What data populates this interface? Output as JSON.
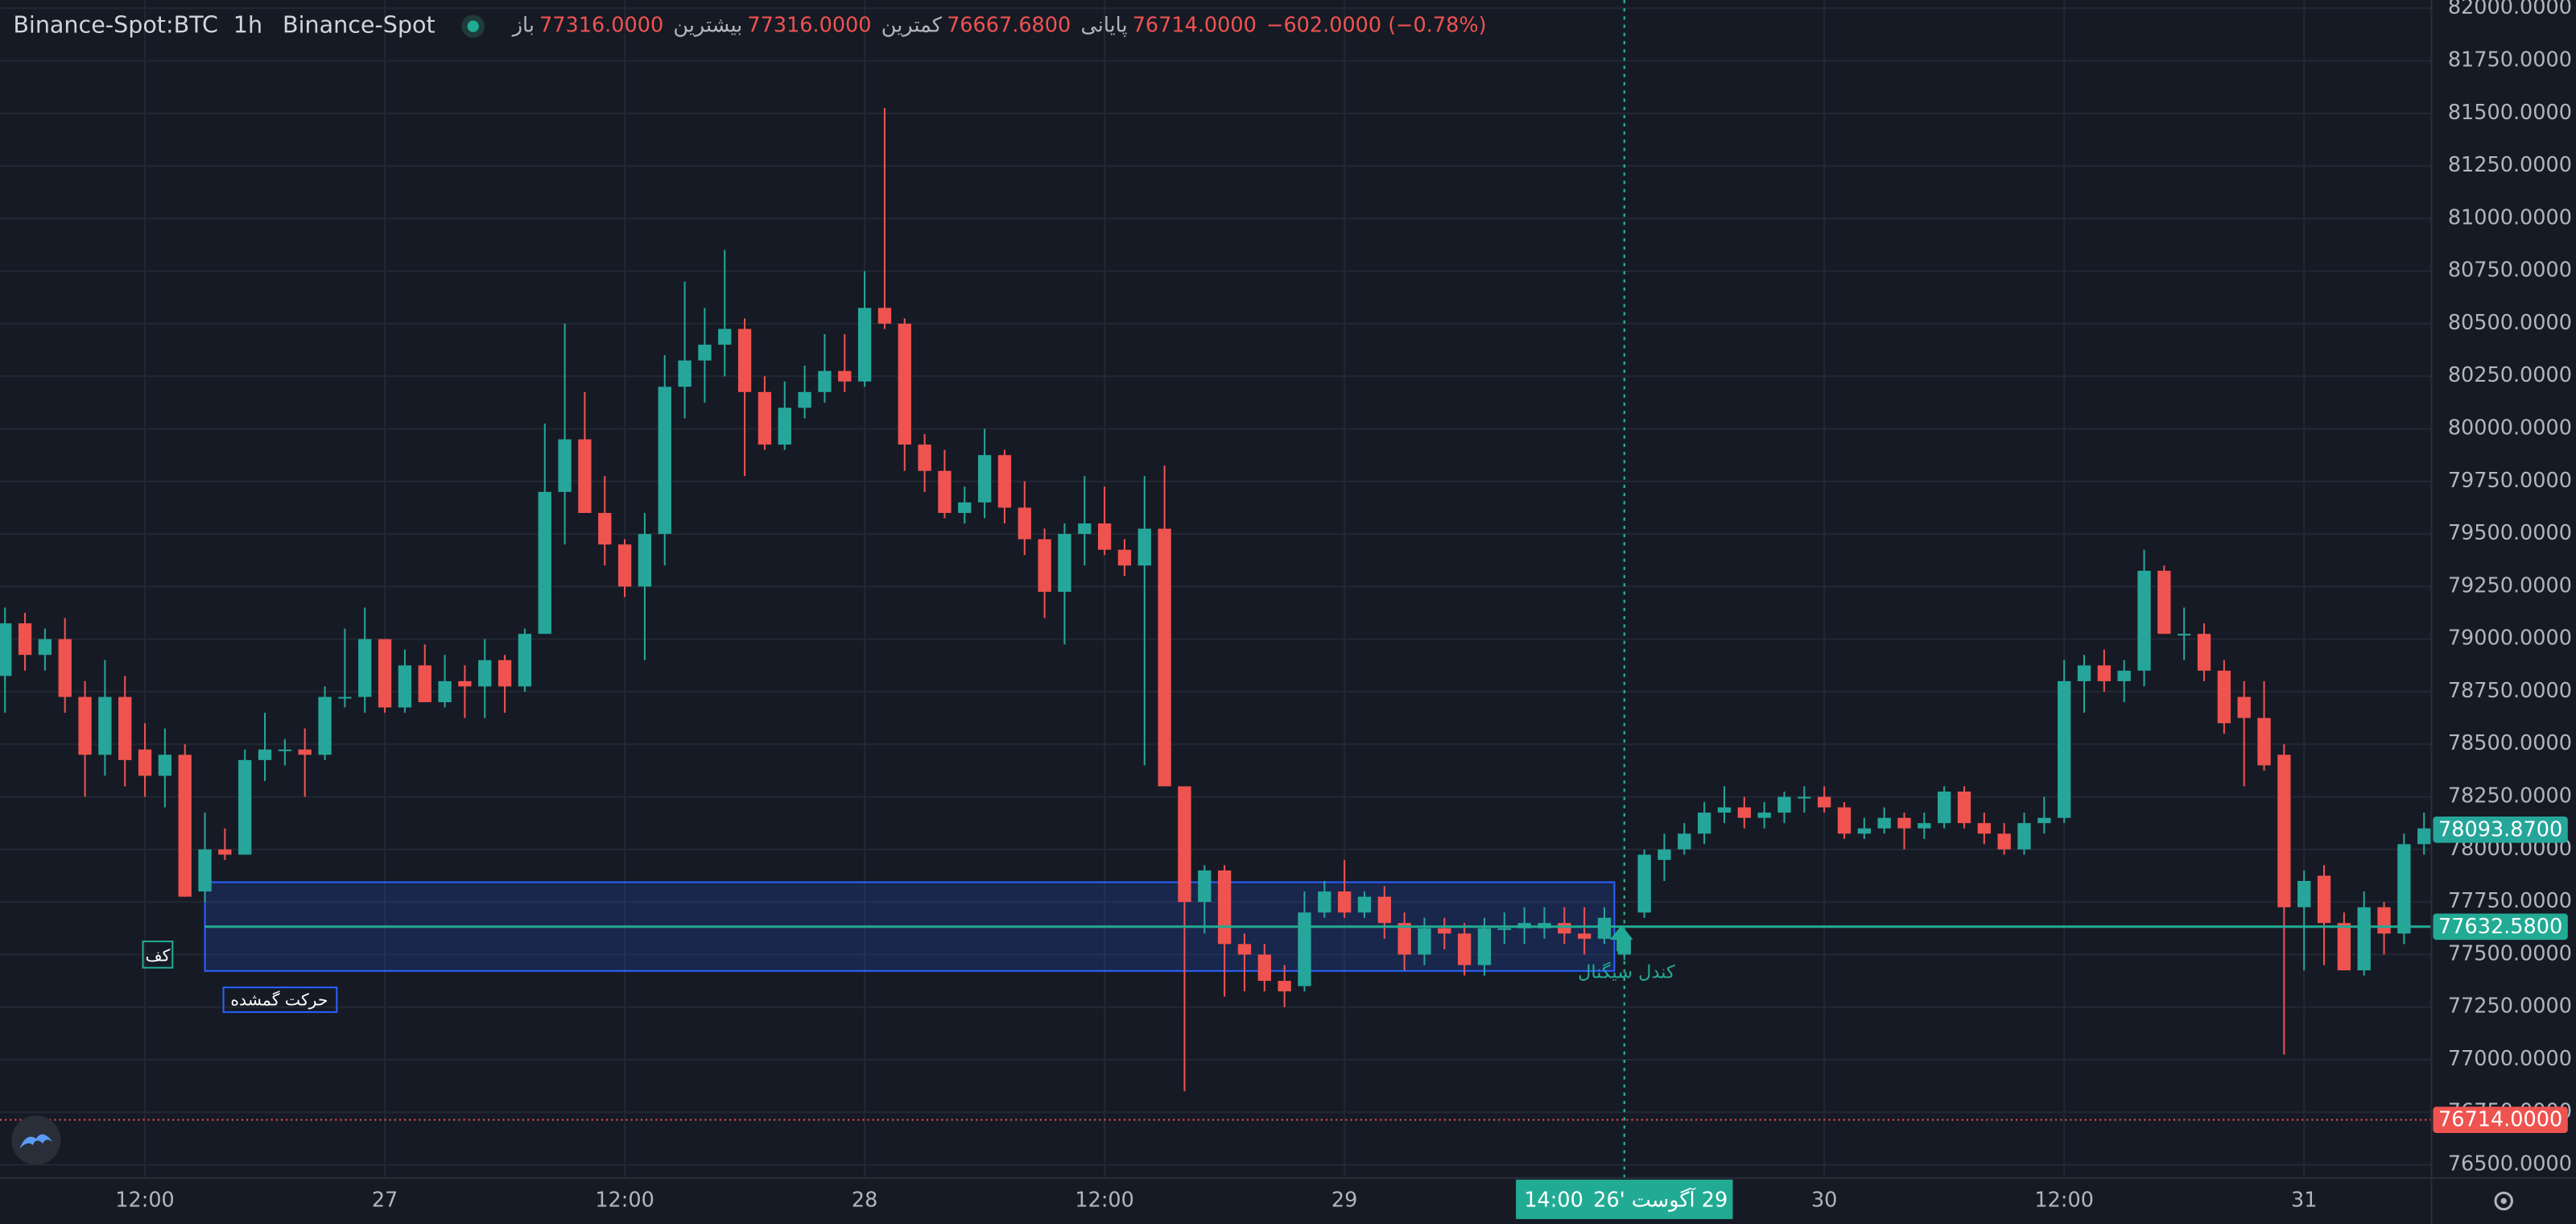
{
  "chart_data": {
    "type": "candlestick",
    "header": {
      "symbol": "Binance-Spot:BTC",
      "interval": "1h",
      "exchange": "Binance-Spot",
      "legend": [
        {
          "label": "باز",
          "value": "77316.0000"
        },
        {
          "label": "بیشترین",
          "value": "77316.0000"
        },
        {
          "label": "کمترین",
          "value": "76667.6800"
        },
        {
          "label": "پایانی",
          "value": "76714.0000"
        }
      ],
      "change": "−602.0000 (−0.78%)"
    },
    "up_color": "#26a69a",
    "down_color": "#ef5350",
    "open": [
      78825,
      79075,
      78925,
      79000,
      78725,
      78450,
      78725,
      78475,
      78350,
      78450,
      77800,
      78000,
      77975,
      78425,
      78475,
      78475,
      78450,
      78725,
      78725,
      79000,
      78675,
      78875,
      78700,
      78800,
      78775,
      78900,
      78775,
      79025,
      79700,
      79950,
      79600,
      79450,
      79250,
      79500,
      80200,
      80325,
      80400,
      80475,
      80175,
      79925,
      80100,
      80175,
      80275,
      80225,
      80575,
      80500,
      79925,
      79800,
      79600,
      79650,
      79875,
      79625,
      79475,
      79225,
      79500,
      79550,
      79425,
      79350,
      79525,
      78300,
      77750,
      77900,
      77550,
      77500,
      77375,
      77350,
      77700,
      77800,
      77700,
      77775,
      77650,
      77500,
      77625,
      77600,
      77450,
      77625,
      77625,
      77625,
      77650,
      77600,
      77575,
      77500,
      77700,
      77950,
      78000,
      78075,
      78175,
      78200,
      78150,
      78175,
      78250,
      78250,
      78200,
      78075,
      78100,
      78150,
      78100,
      78125,
      78275,
      78125,
      78075,
      78000,
      78125,
      78150,
      78800,
      78875,
      78800,
      78850,
      79325,
      79025,
      79025,
      78850,
      78725,
      78625,
      78450,
      77725,
      77875,
      77650,
      77425,
      77725,
      77600,
      78025
    ],
    "high": [
      79150,
      79125,
      79050,
      79100,
      78800,
      78900,
      78825,
      78600,
      78575,
      78500,
      78175,
      78100,
      78475,
      78650,
      78525,
      78575,
      78775,
      79050,
      79150,
      79000,
      78950,
      78975,
      78925,
      78875,
      79000,
      78925,
      79050,
      80025,
      80500,
      80175,
      79775,
      79475,
      79600,
      80350,
      80700,
      80575,
      80850,
      80525,
      80250,
      80225,
      80300,
      80450,
      80450,
      80750,
      81525,
      80525,
      79975,
      79900,
      79725,
      80000,
      79900,
      79750,
      79525,
      79550,
      79775,
      79725,
      79475,
      79775,
      79825,
      78300,
      77925,
      77925,
      77600,
      77550,
      77450,
      77800,
      77850,
      77950,
      77800,
      77825,
      77700,
      77675,
      77675,
      77650,
      77675,
      77700,
      77725,
      77725,
      77725,
      77725,
      77725,
      77575,
      78000,
      78075,
      78125,
      78225,
      78300,
      78250,
      78225,
      78275,
      78300,
      78300,
      78225,
      78150,
      78200,
      78175,
      78175,
      78300,
      78300,
      78175,
      78125,
      78175,
      78250,
      78900,
      78925,
      78950,
      78900,
      79425,
      79350,
      79150,
      79075,
      78900,
      78800,
      78800,
      78500,
      77900,
      77925,
      77700,
      77800,
      77750,
      78075,
      78175
    ],
    "low": [
      78650,
      78850,
      78850,
      78650,
      78250,
      78350,
      78300,
      78250,
      78200,
      77775,
      77750,
      77950,
      77975,
      78325,
      78400,
      78250,
      78425,
      78675,
      78650,
      78650,
      78650,
      78700,
      78675,
      78625,
      78625,
      78650,
      78750,
      79025,
      79450,
      79600,
      79350,
      79200,
      78900,
      79350,
      80050,
      80125,
      80250,
      79775,
      79900,
      79900,
      80050,
      80125,
      80175,
      80200,
      80475,
      79800,
      79700,
      79575,
      79550,
      79575,
      79550,
      79400,
      79100,
      78975,
      79350,
      79400,
      79300,
      78400,
      78300,
      76850,
      77600,
      77300,
      77325,
      77325,
      77250,
      77325,
      77675,
      77675,
      77675,
      77575,
      77425,
      77450,
      77525,
      77400,
      77400,
      77550,
      77550,
      77575,
      77550,
      77500,
      77550,
      77475,
      77675,
      77850,
      77975,
      78025,
      78125,
      78100,
      78100,
      78125,
      78175,
      78175,
      78050,
      78050,
      78075,
      78000,
      78050,
      78100,
      78100,
      78025,
      77975,
      77975,
      78075,
      78125,
      78650,
      78750,
      78700,
      78775,
      79025,
      78900,
      78800,
      78550,
      78300,
      78375,
      77025,
      77425,
      77450,
      77425,
      77400,
      77500,
      77550,
      77975
    ],
    "close": [
      79075,
      78925,
      79000,
      78725,
      78450,
      78725,
      78425,
      78350,
      78450,
      77775,
      78000,
      77975,
      78425,
      78475,
      78475,
      78450,
      78725,
      78725,
      79000,
      78675,
      78875,
      78700,
      78800,
      78775,
      78900,
      78775,
      79025,
      79700,
      79950,
      79600,
      79450,
      79250,
      79500,
      80200,
      80325,
      80400,
      80475,
      80175,
      79925,
      80100,
      80175,
      80275,
      80225,
      80575,
      80500,
      79925,
      79800,
      79600,
      79650,
      79875,
      79625,
      79475,
      79225,
      79500,
      79550,
      79425,
      79350,
      79525,
      78300,
      77750,
      77900,
      77550,
      77500,
      77375,
      77325,
      77700,
      77800,
      77700,
      77775,
      77650,
      77500,
      77625,
      77600,
      77450,
      77625,
      77625,
      77650,
      77650,
      77600,
      77575,
      77675,
      77575,
      77975,
      78000,
      78075,
      78175,
      78200,
      78150,
      78175,
      78250,
      78250,
      78200,
      78075,
      78100,
      78150,
      78100,
      78125,
      78275,
      78125,
      78075,
      78000,
      78125,
      78150,
      78800,
      78875,
      78800,
      78850,
      79325,
      79025,
      79025,
      78850,
      78600,
      78625,
      78400,
      77725,
      77850,
      77650,
      77425,
      77725,
      77600,
      78025,
      78100
    ],
    "xlim": [
      -0.25,
      121.37
    ],
    "xticks": [
      {
        "value": 7,
        "label": "12:00"
      },
      {
        "value": 19,
        "label": "27"
      },
      {
        "value": 31,
        "label": "12:00"
      },
      {
        "value": 43,
        "label": "28"
      },
      {
        "value": 55,
        "label": "12:00"
      },
      {
        "value": 67,
        "label": "29"
      },
      {
        "value": 91,
        "label": "30"
      },
      {
        "value": 103,
        "label": "12:00"
      },
      {
        "value": 115,
        "label": "31"
      }
    ],
    "ylim": [
      76437.5,
      82039.0625
    ],
    "yticks": [
      {
        "value": 76500,
        "label": "76500.0000"
      },
      {
        "value": 76750,
        "label": "76750.0000"
      },
      {
        "value": 77000,
        "label": "77000.0000"
      },
      {
        "value": 77250,
        "label": "77250.0000"
      },
      {
        "value": 77500,
        "label": "77500.0000"
      },
      {
        "value": 77750,
        "label": "77750.0000"
      },
      {
        "value": 78000,
        "label": "78000.0000"
      },
      {
        "value": 78250,
        "label": "78250.0000"
      },
      {
        "value": 78500,
        "label": "78500.0000"
      },
      {
        "value": 78750,
        "label": "78750.0000"
      },
      {
        "value": 79000,
        "label": "79000.0000"
      },
      {
        "value": 79250,
        "label": "79250.0000"
      },
      {
        "value": 79500,
        "label": "79500.0000"
      },
      {
        "value": 79750,
        "label": "79750.0000"
      },
      {
        "value": 80000,
        "label": "80000.0000"
      },
      {
        "value": 80250,
        "label": "80250.0000"
      },
      {
        "value": 80500,
        "label": "80500.0000"
      },
      {
        "value": 80750,
        "label": "80750.0000"
      },
      {
        "value": 81000,
        "label": "81000.0000"
      },
      {
        "value": 81250,
        "label": "81250.0000"
      },
      {
        "value": 81500,
        "label": "81500.0000"
      },
      {
        "value": 81750,
        "label": "81750.0000"
      },
      {
        "value": 82000,
        "label": "82000.0000"
      }
    ],
    "grid": true,
    "zone": {
      "start": 10,
      "end": 80.5,
      "top": 77844,
      "bottom": 77422,
      "color": "#2962ff"
    },
    "price_labels": [
      {
        "value": 78093.87,
        "label": "78093.8700",
        "color": "#26a69a",
        "line": "none"
      },
      {
        "value": 77632.58,
        "label": "77632.5800",
        "color": "#22ab94",
        "line": "solid",
        "from": 10
      },
      {
        "value": 76714,
        "label": "76714.0000",
        "color": "#ef5350",
        "line": "dotted",
        "from": -0.25
      }
    ],
    "crosshair": {
      "x": 81,
      "time": "14:00",
      "date": "29 آگوست '26",
      "color": "#22ab94"
    },
    "annotations": {
      "floor": "کف",
      "missing_move": "حرکت گمشده",
      "signal_candle": "کندل سیگنال"
    }
  }
}
